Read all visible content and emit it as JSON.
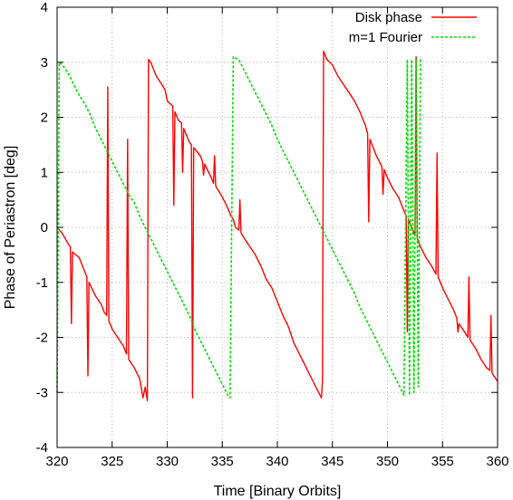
{
  "chart_data": {
    "type": "line",
    "xlabel": "Time [Binary Orbits]",
    "ylabel": "Phase of Periastron [deg]",
    "xlim": [
      320,
      360
    ],
    "ylim": [
      -4,
      4
    ],
    "xticks": [
      320,
      325,
      330,
      335,
      340,
      345,
      350,
      355,
      360
    ],
    "yticks": [
      -4,
      -3,
      -2,
      -1,
      0,
      1,
      2,
      3,
      4
    ],
    "grid": true,
    "legend_position": "top-right",
    "series": [
      {
        "name": "Disk phase",
        "color": "#ff0000",
        "style": "solid",
        "points": [
          [
            320,
            0.0
          ],
          [
            320.5,
            -0.12
          ],
          [
            321,
            -0.3
          ],
          [
            321.2,
            -0.35
          ],
          [
            321.3,
            -1.75
          ],
          [
            321.4,
            -0.45
          ],
          [
            322,
            -0.55
          ],
          [
            322.5,
            -0.8
          ],
          [
            322.7,
            -0.9
          ],
          [
            322.8,
            -2.7
          ],
          [
            322.9,
            -1.0
          ],
          [
            323.5,
            -1.25
          ],
          [
            324,
            -1.4
          ],
          [
            324.3,
            -1.55
          ],
          [
            324.5,
            -1.6
          ],
          [
            324.6,
            2.55
          ],
          [
            324.7,
            -1.7
          ],
          [
            325,
            -1.85
          ],
          [
            325.5,
            -2.0
          ],
          [
            326,
            -2.15
          ],
          [
            326.3,
            -2.3
          ],
          [
            326.4,
            1.6
          ],
          [
            326.5,
            -2.4
          ],
          [
            327,
            -2.55
          ],
          [
            327.5,
            -2.75
          ],
          [
            327.8,
            -3.1
          ],
          [
            328,
            -2.9
          ],
          [
            328.2,
            -3.15
          ],
          [
            328.3,
            3.05
          ],
          [
            328.5,
            3.0
          ],
          [
            329,
            2.75
          ],
          [
            329.5,
            2.6
          ],
          [
            329.8,
            2.5
          ],
          [
            330,
            2.3
          ],
          [
            330.5,
            2.2
          ],
          [
            330.6,
            0.4
          ],
          [
            330.7,
            2.1
          ],
          [
            331,
            1.95
          ],
          [
            331.3,
            1.9
          ],
          [
            331.4,
            1.0
          ],
          [
            331.5,
            1.8
          ],
          [
            332,
            1.55
          ],
          [
            332.2,
            1.5
          ],
          [
            332.3,
            -3.1
          ],
          [
            332.4,
            1.45
          ],
          [
            333,
            1.3
          ],
          [
            333.2,
            1.2
          ],
          [
            333.3,
            0.95
          ],
          [
            333.4,
            1.15
          ],
          [
            334,
            0.9
          ],
          [
            334.2,
            0.8
          ],
          [
            334.3,
            1.3
          ],
          [
            334.4,
            0.75
          ],
          [
            335,
            0.55
          ],
          [
            335.5,
            0.35
          ],
          [
            335.8,
            0.2
          ],
          [
            336,
            0.15
          ],
          [
            336.2,
            0.0
          ],
          [
            336.5,
            -0.05
          ],
          [
            336.6,
            0.5
          ],
          [
            336.7,
            -0.1
          ],
          [
            337,
            -0.2
          ],
          [
            337.5,
            -0.35
          ],
          [
            338,
            -0.5
          ],
          [
            338.5,
            -0.7
          ],
          [
            339,
            -0.95
          ],
          [
            339.5,
            -1.1
          ],
          [
            340,
            -1.35
          ],
          [
            340.5,
            -1.6
          ],
          [
            341,
            -1.8
          ],
          [
            341.5,
            -2.1
          ],
          [
            342,
            -2.3
          ],
          [
            342.5,
            -2.5
          ],
          [
            343,
            -2.7
          ],
          [
            343.5,
            -2.9
          ],
          [
            344,
            -3.1
          ],
          [
            344.1,
            -2.8
          ],
          [
            344.2,
            3.2
          ],
          [
            344.5,
            3.05
          ],
          [
            345,
            2.95
          ],
          [
            345.5,
            2.75
          ],
          [
            346,
            2.6
          ],
          [
            346.5,
            2.45
          ],
          [
            347,
            2.3
          ],
          [
            347.5,
            2.1
          ],
          [
            348,
            1.85
          ],
          [
            348.2,
            1.7
          ],
          [
            348.3,
            0.1
          ],
          [
            348.4,
            1.6
          ],
          [
            349,
            1.3
          ],
          [
            349.5,
            1.1
          ],
          [
            349.6,
            0.6
          ],
          [
            349.7,
            1.05
          ],
          [
            350,
            0.9
          ],
          [
            350.5,
            0.7
          ],
          [
            351,
            0.55
          ],
          [
            351.5,
            0.3
          ],
          [
            351.7,
            0.2
          ],
          [
            351.8,
            -1.9
          ],
          [
            351.9,
            0.15
          ],
          [
            352,
            0.1
          ],
          [
            352.3,
            -0.05
          ],
          [
            352.5,
            -0.15
          ],
          [
            352.6,
            3.1
          ],
          [
            352.7,
            -0.2
          ],
          [
            353,
            -0.35
          ],
          [
            353.5,
            -0.55
          ],
          [
            354,
            -0.7
          ],
          [
            354.4,
            -0.85
          ],
          [
            354.5,
            1.35
          ],
          [
            354.6,
            -0.9
          ],
          [
            355,
            -1.1
          ],
          [
            355.5,
            -1.3
          ],
          [
            356,
            -1.5
          ],
          [
            356.3,
            -1.65
          ],
          [
            356.4,
            -1.9
          ],
          [
            356.5,
            -1.75
          ],
          [
            357,
            -1.9
          ],
          [
            357.3,
            -2.0
          ],
          [
            357.4,
            -0.9
          ],
          [
            357.5,
            -2.05
          ],
          [
            358,
            -2.2
          ],
          [
            358.5,
            -2.4
          ],
          [
            359,
            -2.55
          ],
          [
            359.3,
            -2.6
          ],
          [
            359.4,
            -1.6
          ],
          [
            359.5,
            -2.65
          ],
          [
            360,
            -2.8
          ]
        ]
      },
      {
        "name": "m=1 Fourier",
        "color": "#00dd00",
        "style": "dashed",
        "points": [
          [
            320,
            -3.0
          ],
          [
            320.2,
            3.0
          ],
          [
            320.5,
            2.95
          ],
          [
            321,
            2.8
          ],
          [
            321.5,
            2.6
          ],
          [
            322,
            2.4
          ],
          [
            322.5,
            2.25
          ],
          [
            323,
            2.05
          ],
          [
            323.5,
            1.8
          ],
          [
            324,
            1.6
          ],
          [
            324.5,
            1.4
          ],
          [
            325,
            1.2
          ],
          [
            325.5,
            1.0
          ],
          [
            326,
            0.8
          ],
          [
            326.5,
            0.6
          ],
          [
            327,
            0.45
          ],
          [
            327.5,
            0.2
          ],
          [
            328,
            0.0
          ],
          [
            328.5,
            -0.2
          ],
          [
            329,
            -0.4
          ],
          [
            329.5,
            -0.6
          ],
          [
            330,
            -0.8
          ],
          [
            330.5,
            -1.0
          ],
          [
            331,
            -1.2
          ],
          [
            331.5,
            -1.4
          ],
          [
            332,
            -1.6
          ],
          [
            332.5,
            -1.85
          ],
          [
            333,
            -2.05
          ],
          [
            333.5,
            -2.25
          ],
          [
            334,
            -2.45
          ],
          [
            334.5,
            -2.65
          ],
          [
            335,
            -2.85
          ],
          [
            335.5,
            -3.05
          ],
          [
            335.7,
            -3.1
          ],
          [
            336.0,
            3.1
          ],
          [
            336.5,
            3.05
          ],
          [
            337,
            2.85
          ],
          [
            337.5,
            2.65
          ],
          [
            338,
            2.45
          ],
          [
            338.5,
            2.25
          ],
          [
            339,
            2.05
          ],
          [
            339.5,
            1.85
          ],
          [
            340,
            1.6
          ],
          [
            340.5,
            1.4
          ],
          [
            341,
            1.2
          ],
          [
            341.5,
            1.0
          ],
          [
            342,
            0.8
          ],
          [
            342.5,
            0.6
          ],
          [
            343,
            0.4
          ],
          [
            343.5,
            0.2
          ],
          [
            344,
            0.0
          ],
          [
            344.5,
            -0.2
          ],
          [
            345,
            -0.4
          ],
          [
            345.5,
            -0.6
          ],
          [
            346,
            -0.8
          ],
          [
            346.5,
            -1.0
          ],
          [
            347,
            -1.2
          ],
          [
            347.5,
            -1.45
          ],
          [
            348,
            -1.65
          ],
          [
            348.5,
            -1.85
          ],
          [
            349,
            -2.05
          ],
          [
            349.5,
            -2.25
          ],
          [
            350,
            -2.45
          ],
          [
            350.5,
            -2.65
          ],
          [
            351,
            -2.85
          ],
          [
            351.5,
            -3.05
          ],
          [
            351.8,
            3.05
          ],
          [
            352.0,
            -3.05
          ],
          [
            352.2,
            3.05
          ],
          [
            352.4,
            -3.0
          ],
          [
            352.6,
            3.05
          ],
          [
            352.8,
            -2.9
          ],
          [
            353.0,
            3.1
          ]
        ]
      }
    ]
  }
}
